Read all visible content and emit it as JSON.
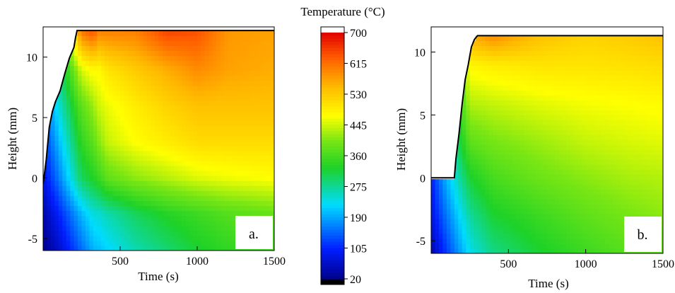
{
  "chart_data": [
    {
      "type": "heatmap",
      "panel_label": "a.",
      "xlabel": "Time (s)",
      "ylabel": "Height (mm)",
      "xlim": [
        0,
        1500
      ],
      "ylim": [
        -6,
        12.5
      ],
      "x_ticks": [
        "500",
        "1000",
        "1500"
      ],
      "y_ticks": [
        "-5",
        "0",
        "5",
        "10"
      ],
      "deposit_top_mm": 12.2,
      "deposit_front": [
        [
          0,
          -0.5
        ],
        [
          20,
          1.5
        ],
        [
          40,
          4.2
        ],
        [
          60,
          5.5
        ],
        [
          80,
          6.3
        ],
        [
          110,
          7.2
        ],
        [
          140,
          8.6
        ],
        [
          170,
          9.9
        ],
        [
          200,
          10.8
        ],
        [
          210,
          11.6
        ],
        [
          220,
          12.2
        ]
      ],
      "temperature_grid": {
        "times": [
          0,
          100,
          250,
          330,
          350,
          420,
          600,
          800,
          1000,
          1200,
          1500
        ],
        "heights": [
          -6,
          -3,
          0,
          3,
          6,
          9,
          12.2
        ],
        "values": [
          [
            20,
            60,
            150,
            200,
            200,
            220,
            260,
            290,
            320,
            340,
            360
          ],
          [
            40,
            100,
            200,
            240,
            240,
            260,
            300,
            330,
            350,
            370,
            385
          ],
          [
            80,
            160,
            300,
            330,
            340,
            380,
            410,
            430,
            450,
            460,
            470
          ],
          [
            110,
            200,
            340,
            380,
            400,
            440,
            470,
            490,
            510,
            510,
            510
          ],
          [
            140,
            240,
            380,
            420,
            440,
            460,
            490,
            520,
            540,
            540,
            540
          ],
          [
            160,
            280,
            450,
            480,
            470,
            500,
            530,
            560,
            590,
            570,
            560
          ],
          [
            170,
            320,
            610,
            640,
            600,
            600,
            600,
            650,
            640,
            580,
            570
          ]
        ]
      }
    },
    {
      "type": "heatmap",
      "panel_label": "b.",
      "xlabel": "Time (s)",
      "ylabel": "Height (mm)",
      "xlim": [
        0,
        1500
      ],
      "ylim": [
        -6,
        12
      ],
      "x_ticks": [
        "500",
        "1000",
        "1500"
      ],
      "y_ticks": [
        "-5",
        "0",
        "5",
        "10"
      ],
      "deposit_top_mm": 11.3,
      "deposit_front": [
        [
          0,
          0
        ],
        [
          150,
          0
        ],
        [
          160,
          1.5
        ],
        [
          180,
          3.5
        ],
        [
          200,
          5.8
        ],
        [
          220,
          7.8
        ],
        [
          240,
          9.0
        ],
        [
          260,
          10.4
        ],
        [
          280,
          11.0
        ],
        [
          300,
          11.3
        ]
      ],
      "temperature_grid": {
        "times": [
          0,
          100,
          250,
          400,
          700,
          1000,
          1300,
          1500
        ],
        "heights": [
          -6,
          -3,
          0,
          3,
          6,
          9,
          11.3
        ],
        "values": [
          [
            40,
            120,
            230,
            280,
            320,
            350,
            375,
            385
          ],
          [
            80,
            160,
            270,
            320,
            350,
            380,
            400,
            410
          ],
          [
            100,
            200,
            320,
            360,
            390,
            410,
            425,
            430
          ],
          [
            120,
            230,
            380,
            400,
            420,
            440,
            450,
            455
          ],
          [
            130,
            250,
            430,
            440,
            455,
            465,
            470,
            475
          ],
          [
            140,
            260,
            480,
            490,
            500,
            500,
            505,
            510
          ],
          [
            150,
            270,
            560,
            590,
            540,
            520,
            530,
            540
          ]
        ]
      }
    }
  ],
  "colorbar": {
    "title": "Temperature (°C)",
    "ticks": [
      "700",
      "615",
      "530",
      "445",
      "360",
      "275",
      "190",
      "105",
      "20"
    ],
    "range": [
      20,
      700
    ]
  }
}
